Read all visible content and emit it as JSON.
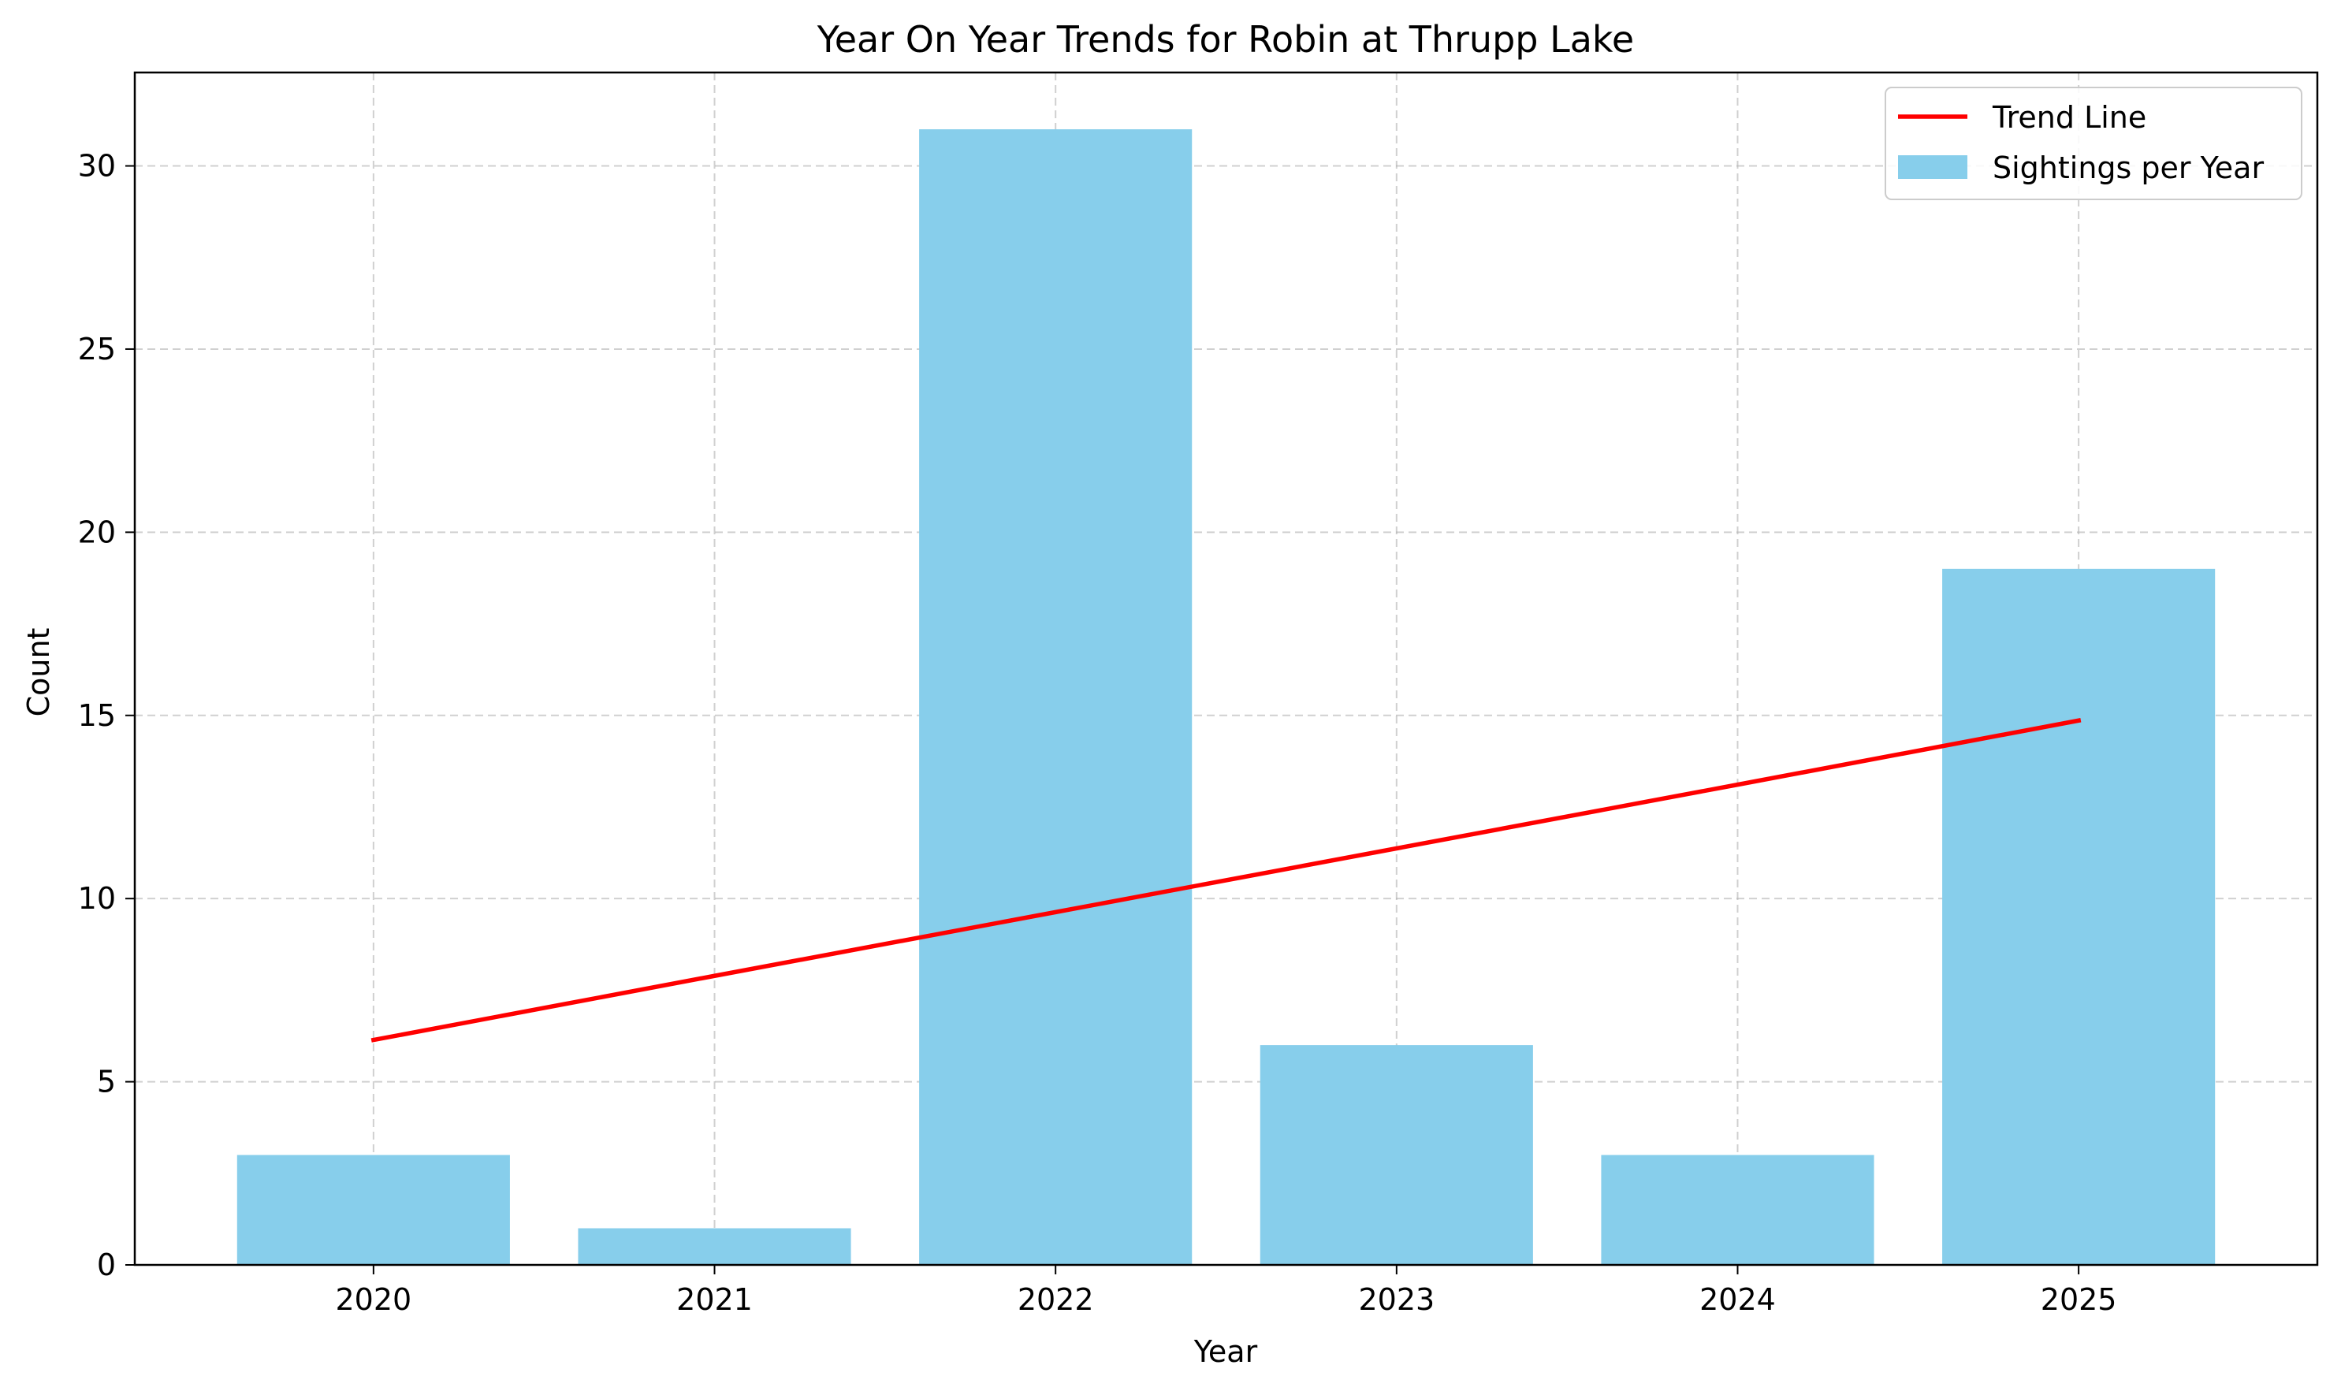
{
  "chart_data": {
    "type": "bar",
    "title": "Year On Year Trends for Robin at Thrupp Lake",
    "xlabel": "Year",
    "ylabel": "Count",
    "categories": [
      "2020",
      "2021",
      "2022",
      "2023",
      "2024",
      "2025"
    ],
    "series": [
      {
        "name": "Sightings per Year",
        "type": "bar",
        "values": [
          3,
          1,
          31,
          6,
          3,
          19
        ],
        "color": "#87CEEB"
      },
      {
        "name": "Trend Line",
        "type": "line",
        "values": [
          6.14,
          7.89,
          9.63,
          11.37,
          13.11,
          14.86
        ],
        "color": "#FF0000"
      }
    ],
    "ylim": [
      0,
      32.55
    ],
    "yticks": [
      0,
      5,
      10,
      15,
      20,
      25,
      30
    ],
    "grid": true,
    "grid_style": "dashed",
    "legend_position": "upper right"
  }
}
